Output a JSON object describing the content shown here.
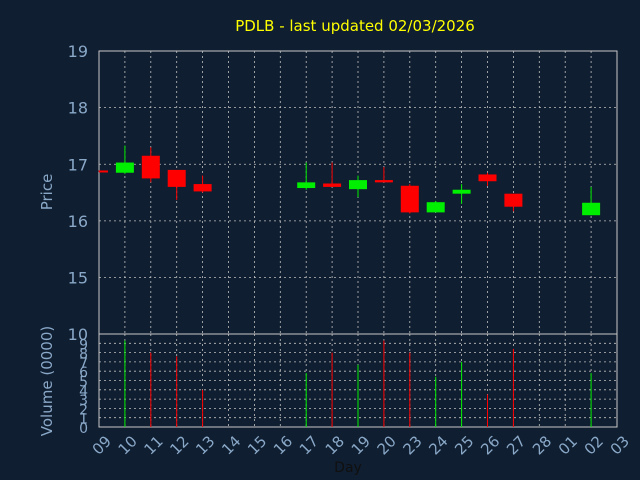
{
  "chart_data": {
    "type": "candlestick",
    "title": "PDLB - last updated 02/03/2026",
    "price_panel": {
      "ylabel": "Price",
      "ylim": [
        15,
        19
      ],
      "yticks": [
        "15",
        "16",
        "17",
        "18",
        "19"
      ],
      "grid": true
    },
    "volume_panel": {
      "ylabel": "Volume (0000)",
      "ylim": [
        0,
        10
      ],
      "yticks": [
        "0",
        "1",
        "2",
        "3",
        "4",
        "5",
        "6",
        "7",
        "8",
        "9",
        "10"
      ],
      "grid": true
    },
    "xlabel": "Day",
    "x_ticks": [
      "09",
      "10",
      "11",
      "12",
      "13",
      "14",
      "15",
      "16",
      "17",
      "18",
      "19",
      "20",
      "23",
      "24",
      "25",
      "26",
      "27",
      "28",
      "01",
      "02",
      "03"
    ],
    "candles": [
      {
        "day": "09",
        "open": 16.89,
        "high": 16.89,
        "low": 16.87,
        "close": 16.87,
        "volume": 0
      },
      {
        "day": "10",
        "open": 16.85,
        "high": 17.33,
        "low": 16.83,
        "close": 17.03,
        "volume": 9.3
      },
      {
        "day": "11",
        "open": 17.15,
        "high": 17.3,
        "low": 16.68,
        "close": 16.75,
        "volume": 8.0
      },
      {
        "day": "12",
        "open": 16.9,
        "high": 16.9,
        "low": 16.37,
        "close": 16.6,
        "volume": 7.6
      },
      {
        "day": "13",
        "open": 16.65,
        "high": 16.8,
        "low": 16.5,
        "close": 16.52,
        "volume": 4.0
      },
      {
        "day": "17",
        "open": 16.58,
        "high": 17.03,
        "low": 16.55,
        "close": 16.68,
        "volume": 5.8
      },
      {
        "day": "18",
        "open": 16.66,
        "high": 17.03,
        "low": 16.6,
        "close": 16.6,
        "volume": 8.0
      },
      {
        "day": "19",
        "open": 16.56,
        "high": 16.8,
        "low": 16.42,
        "close": 16.72,
        "volume": 6.7
      },
      {
        "day": "20",
        "open": 16.72,
        "high": 16.95,
        "low": 16.68,
        "close": 16.68,
        "volume": 9.3
      },
      {
        "day": "23",
        "open": 16.62,
        "high": 16.65,
        "low": 16.13,
        "close": 16.15,
        "volume": 8.0
      },
      {
        "day": "24",
        "open": 16.15,
        "high": 16.35,
        "low": 16.15,
        "close": 16.33,
        "volume": 5.4
      },
      {
        "day": "25",
        "open": 16.48,
        "high": 16.65,
        "low": 16.3,
        "close": 16.55,
        "volume": 7.0
      },
      {
        "day": "26",
        "open": 16.82,
        "high": 16.85,
        "low": 16.62,
        "close": 16.7,
        "volume": 3.5
      },
      {
        "day": "27",
        "open": 16.48,
        "high": 16.48,
        "low": 16.17,
        "close": 16.25,
        "volume": 8.4
      },
      {
        "day": "02",
        "open": 16.1,
        "high": 16.6,
        "low": 16.1,
        "close": 16.32,
        "volume": 5.8
      }
    ],
    "colors": {
      "up": "#00ee00",
      "down": "#ff0000",
      "background": "#0f1e30",
      "grid": "#c0c0c0",
      "axis_text": "#8aa8c8",
      "title": "#ffff00"
    }
  }
}
